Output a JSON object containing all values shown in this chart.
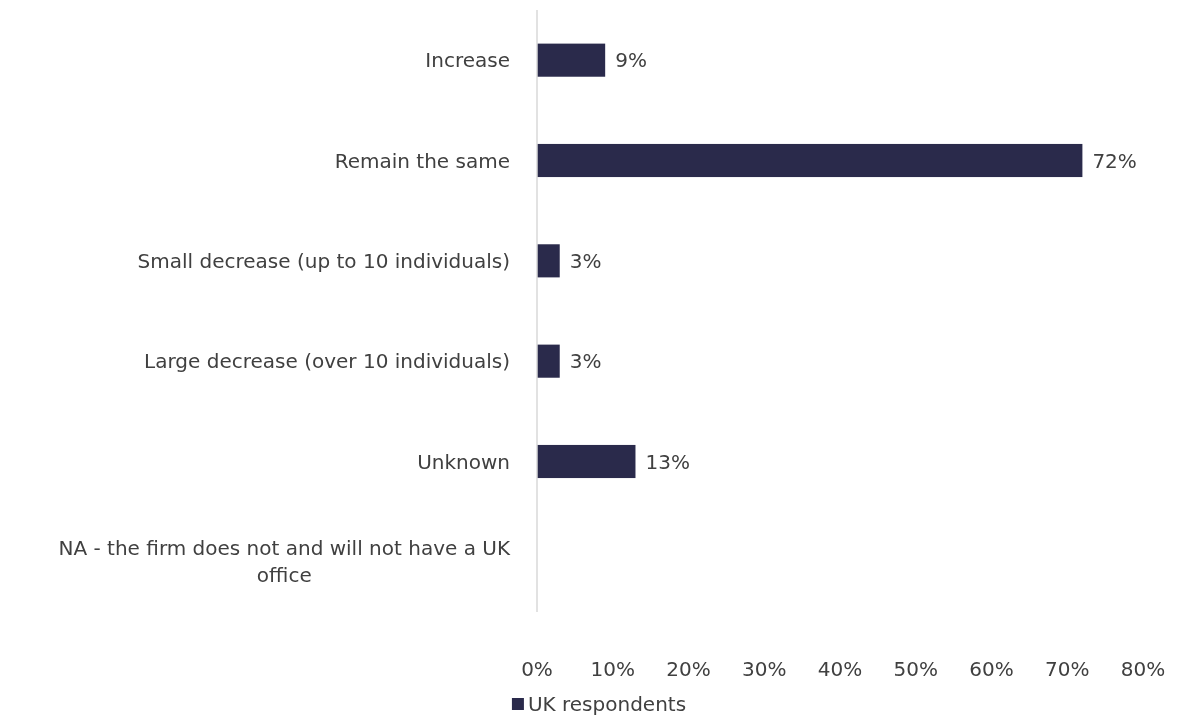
{
  "chart_data": {
    "type": "bar",
    "orientation": "horizontal",
    "categories": [
      "Increase",
      "Remain the same",
      "Small decrease (up to 10 individuals)",
      "Large decrease (over 10 individuals)",
      "Unknown",
      "NA - the firm does not and will not have a UK office"
    ],
    "series": [
      {
        "name": "UK respondents",
        "color": "#2a2a4b",
        "values": [
          9,
          72,
          3,
          3,
          13,
          null
        ],
        "value_labels": [
          "9%",
          "72%",
          "3%",
          "3%",
          "13%",
          null
        ]
      }
    ],
    "xlim": [
      0,
      80
    ],
    "xticks": [
      {
        "value": 0,
        "label": "0%"
      },
      {
        "value": 10,
        "label": "10%"
      },
      {
        "value": 20,
        "label": "20%"
      },
      {
        "value": 30,
        "label": "30%"
      },
      {
        "value": 40,
        "label": "40%"
      },
      {
        "value": 50,
        "label": "50%"
      },
      {
        "value": 60,
        "label": "60%"
      },
      {
        "value": 70,
        "label": "70%"
      },
      {
        "value": 80,
        "label": "80%"
      }
    ],
    "legend": "bottom",
    "grid": false
  }
}
